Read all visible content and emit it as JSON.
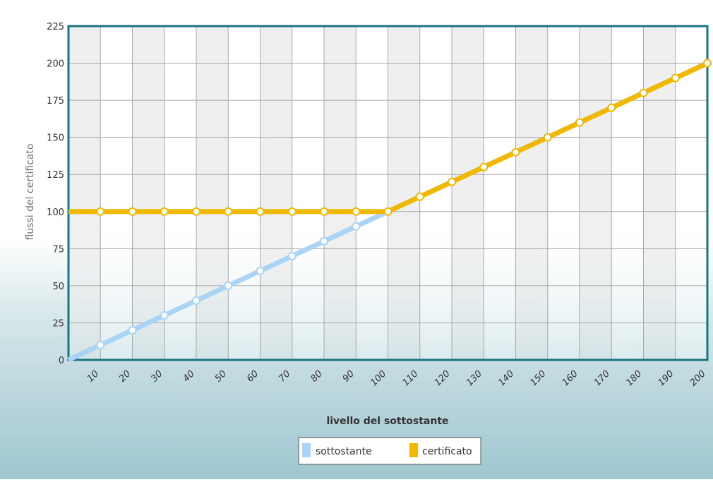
{
  "chart_data": {
    "type": "line",
    "title": "",
    "xlabel": "livello del sottostante",
    "ylabel": "flussi del certificato",
    "x": [
      0,
      10,
      20,
      30,
      40,
      50,
      60,
      70,
      80,
      90,
      100,
      110,
      120,
      130,
      140,
      150,
      160,
      170,
      180,
      190,
      200
    ],
    "x_ticks": [
      10,
      20,
      30,
      40,
      50,
      60,
      70,
      80,
      90,
      100,
      110,
      120,
      130,
      140,
      150,
      160,
      170,
      180,
      190,
      200
    ],
    "y_ticks": [
      0,
      25,
      50,
      75,
      100,
      125,
      150,
      175,
      200,
      225
    ],
    "xlim": [
      0,
      200
    ],
    "ylim": [
      0,
      225
    ],
    "grid": true,
    "legend_position": "bottom-center",
    "series": [
      {
        "name": "sottostante",
        "color": "#aad4f5",
        "values": [
          0,
          10,
          20,
          30,
          40,
          50,
          60,
          70,
          80,
          90,
          100,
          110,
          120,
          130,
          140,
          150,
          160,
          170,
          180,
          190,
          200
        ]
      },
      {
        "name": "certificato",
        "color": "#f0b800",
        "values": [
          100,
          100,
          100,
          100,
          100,
          100,
          100,
          100,
          100,
          100,
          100,
          110,
          120,
          130,
          140,
          150,
          160,
          170,
          180,
          190,
          200
        ]
      }
    ],
    "colors": {
      "frame": "#1b7480",
      "grid": "#a8a8a8",
      "marker_fill": "#ffffff"
    }
  }
}
